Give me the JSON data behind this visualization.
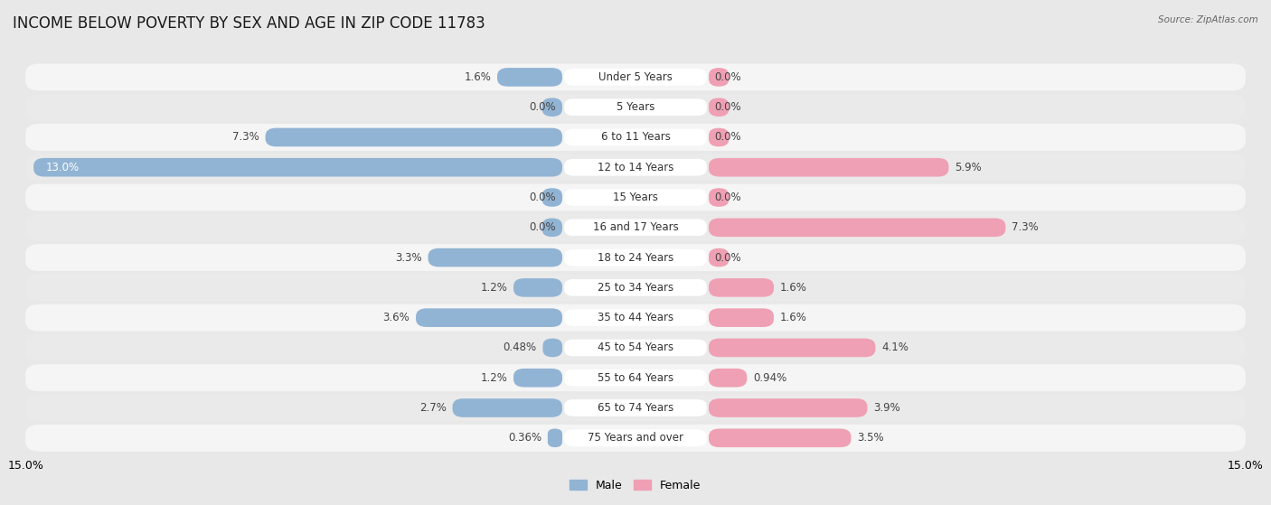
{
  "title": "INCOME BELOW POVERTY BY SEX AND AGE IN ZIP CODE 11783",
  "source": "Source: ZipAtlas.com",
  "categories": [
    "Under 5 Years",
    "5 Years",
    "6 to 11 Years",
    "12 to 14 Years",
    "15 Years",
    "16 and 17 Years",
    "18 to 24 Years",
    "25 to 34 Years",
    "35 to 44 Years",
    "45 to 54 Years",
    "55 to 64 Years",
    "65 to 74 Years",
    "75 Years and over"
  ],
  "male_values": [
    1.6,
    0.0,
    7.3,
    13.0,
    0.0,
    0.0,
    3.3,
    1.2,
    3.6,
    0.48,
    1.2,
    2.7,
    0.36
  ],
  "female_values": [
    0.0,
    0.0,
    0.0,
    5.9,
    0.0,
    7.3,
    0.0,
    1.6,
    1.6,
    4.1,
    0.94,
    3.9,
    3.5
  ],
  "male_color": "#92b4d4",
  "female_color": "#f0a0b4",
  "male_label": "Male",
  "female_label": "Female",
  "xlim": 15.0,
  "background_color": "#e8e8e8",
  "row_light_color": "#f5f5f5",
  "row_dark_color": "#eaeaea",
  "title_fontsize": 12,
  "label_fontsize": 8.5,
  "bar_height": 0.62
}
